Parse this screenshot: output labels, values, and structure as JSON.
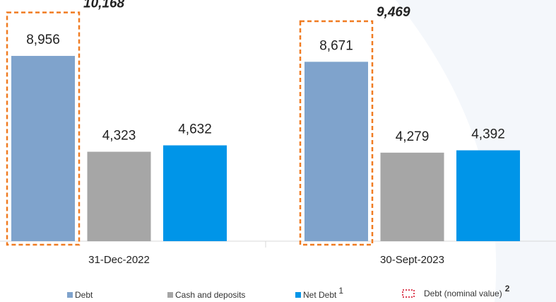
{
  "chart_data": {
    "type": "bar",
    "categories": [
      "31-Dec-2022",
      "30-Sept-2023"
    ],
    "series": [
      {
        "name": "Debt",
        "color": "#7fa3cc",
        "values": [
          8956,
          8671
        ],
        "value_labels": [
          "8,956",
          "8,671"
        ]
      },
      {
        "name": "Cash and deposits",
        "color": "#a6a6a6",
        "values": [
          4323,
          4279
        ],
        "value_labels": [
          "4,323",
          "4,279"
        ]
      },
      {
        "name": "Net Debt",
        "note": "1",
        "color": "#0095e8",
        "values": [
          4632,
          4392
        ],
        "value_labels": [
          "4,632",
          "4,392"
        ]
      }
    ],
    "nominal_debt": {
      "name": "Debt (nominal value)",
      "note": "2",
      "color": "#f07c22",
      "values": [
        10168,
        9469
      ],
      "value_labels": [
        "10,168",
        "9,469"
      ]
    },
    "legend": "bottom"
  }
}
